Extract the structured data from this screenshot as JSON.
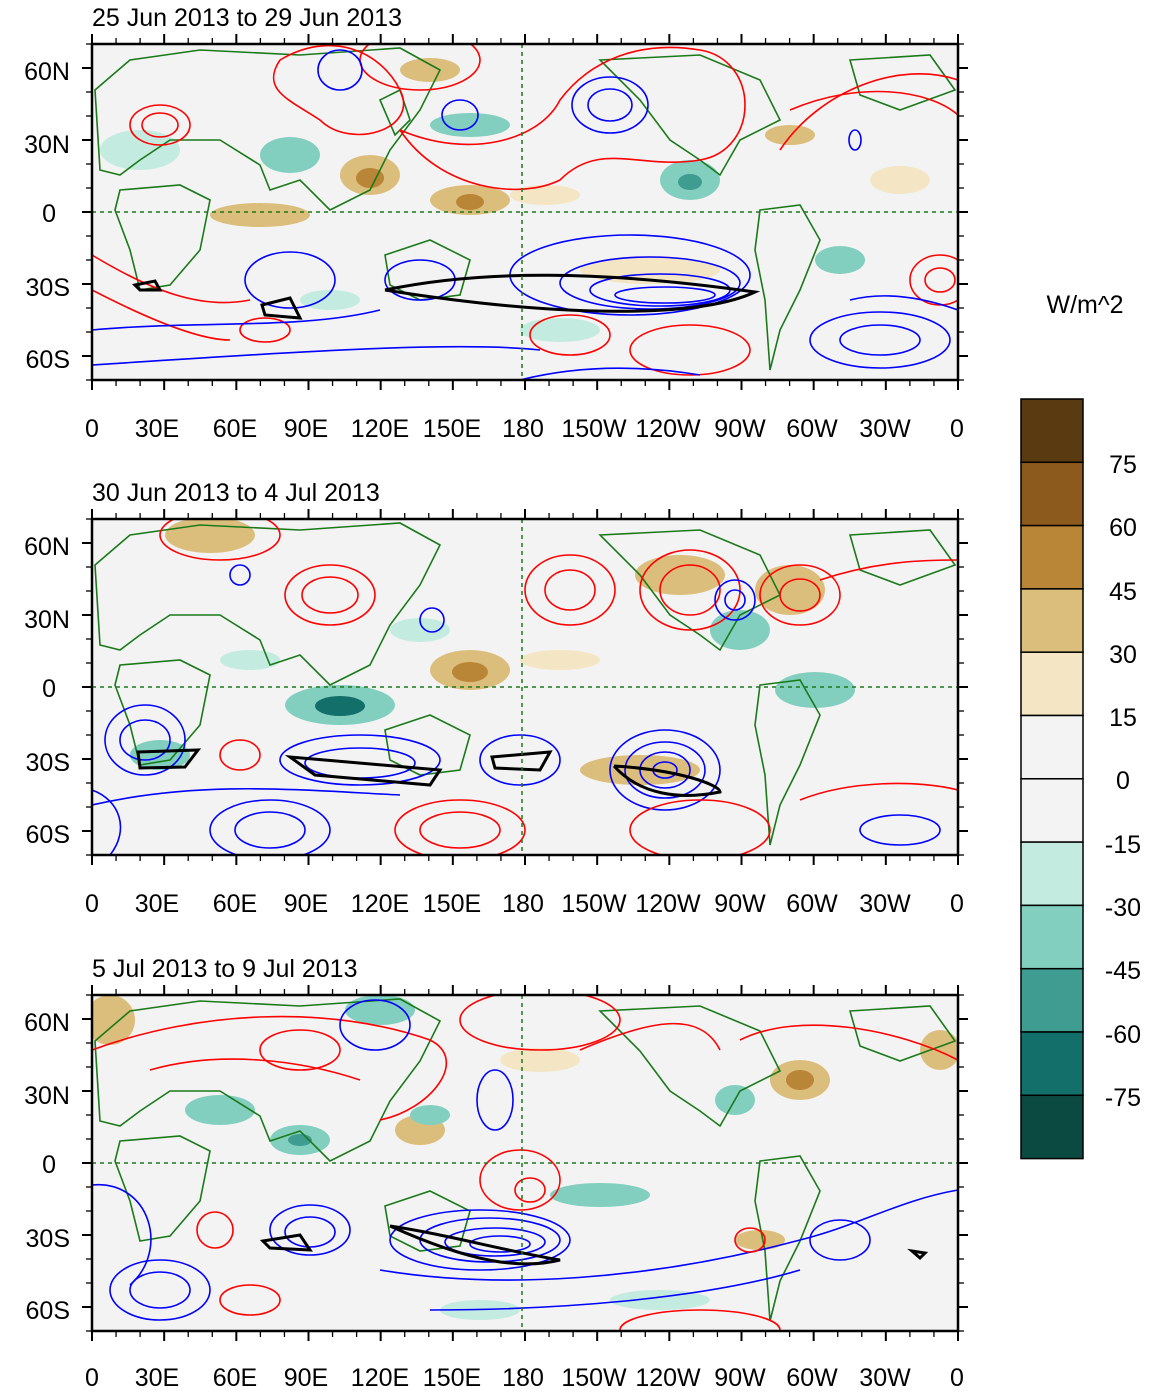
{
  "panels": [
    {
      "title": "25 Jun 2013 to 29 Jun 2013"
    },
    {
      "title": "30 Jun 2013 to 4 Jul 2013"
    },
    {
      "title": "5 Jul 2013 to 9 Jul 2013"
    }
  ],
  "axes": {
    "lon_labels": [
      "0",
      "30E",
      "60E",
      "90E",
      "120E",
      "150E",
      "180",
      "150W",
      "120W",
      "90W",
      "60W",
      "30W",
      "0"
    ],
    "lat_labels": [
      "60N",
      "30N",
      "0",
      "30S",
      "60S"
    ]
  },
  "colorbar": {
    "units": "W/m^2",
    "levels": [
      "75",
      "60",
      "45",
      "30",
      "15",
      "0",
      "-15",
      "-30",
      "-45",
      "-60",
      "-75"
    ],
    "colors": [
      "#5a3a10",
      "#8c5a1c",
      "#b98536",
      "#dcbe7c",
      "#f4e6c4",
      "#f3f3f3",
      "#f3f3f3",
      "#c4ebe0",
      "#82cfc0",
      "#3e9c91",
      "#136f69",
      "#0b4a40"
    ]
  },
  "contour_colors": {
    "positive": "#ff0000",
    "negative": "#0000ff",
    "outline": "#000000",
    "coast": "#1a7a1a"
  }
}
